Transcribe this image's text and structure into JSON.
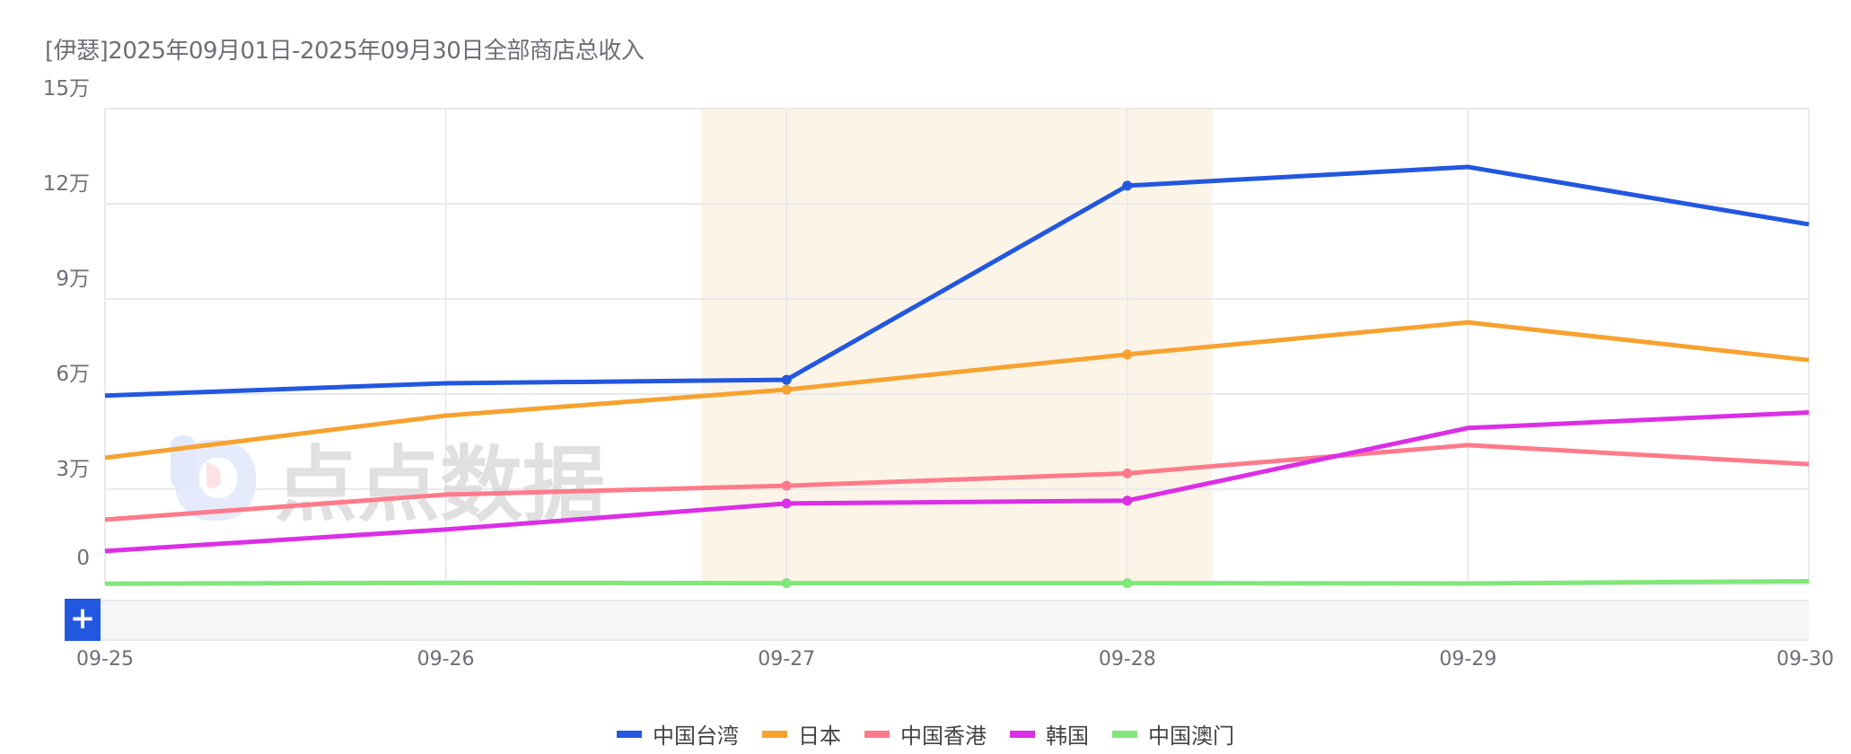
{
  "title": "[伊瑟]2025年09月01日-2025年09月30日全部商店总收入",
  "chart_data": {
    "type": "line",
    "title": "[伊瑟]2025年09月01日-2025年09月30日全部商店总收入",
    "xlabel": "",
    "ylabel": "",
    "categories": [
      "09-25",
      "09-26",
      "09-27",
      "09-28",
      "09-29",
      "09-30"
    ],
    "ylim": [
      0,
      150000
    ],
    "yticks": [
      0,
      30000,
      60000,
      90000,
      120000,
      150000
    ],
    "ytick_labels": [
      "0",
      "3万",
      "6万",
      "9万",
      "12万",
      "15万"
    ],
    "grid": true,
    "legend_position": "bottom",
    "highlight_range": [
      "09-27",
      "09-28"
    ],
    "highlight_color": "#fdf4e8",
    "series": [
      {
        "name": "中国台湾",
        "color": "#2257e0",
        "values": [
          59500,
          63400,
          64500,
          125700,
          131600,
          113500
        ]
      },
      {
        "name": "日本",
        "color": "#f7a22f",
        "values": [
          39900,
          53200,
          61400,
          72500,
          82600,
          70700
        ]
      },
      {
        "name": "中国香港",
        "color": "#ff7a8a",
        "values": [
          20400,
          28300,
          31100,
          35000,
          43900,
          37900
        ]
      },
      {
        "name": "韩国",
        "color": "#dc2ee6",
        "values": [
          10500,
          17300,
          25500,
          26400,
          49300,
          54200
        ]
      },
      {
        "name": "中国澳门",
        "color": "#7fe877",
        "values": [
          200,
          500,
          400,
          400,
          300,
          1000
        ]
      }
    ]
  },
  "datazoom": {
    "button_label": "+"
  },
  "watermark": {
    "text": "点点数据"
  }
}
